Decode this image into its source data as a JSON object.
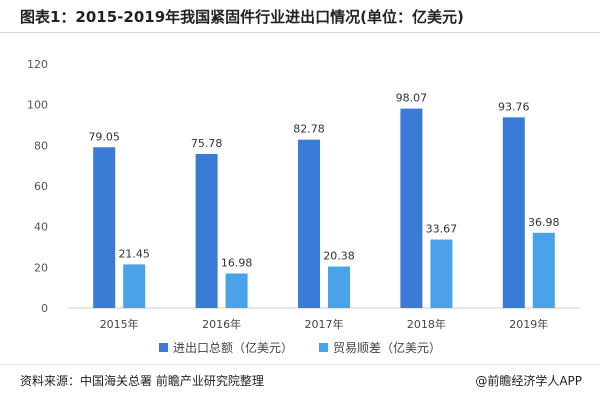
{
  "title": "图表1：2015-2019年我国紧固件行业进出口情况(单位：亿美元)",
  "footer": {
    "source": "资料来源：中国海关总署   前瞻产业研究院整理",
    "brand": "@前瞻经济学人APP"
  },
  "colors": {
    "series1": "#3a7bd5",
    "series2": "#4aa3e8",
    "axis": "#cccccc",
    "grid": "#e6e6e6"
  },
  "chart_data": {
    "type": "bar",
    "categories": [
      "2015年",
      "2016年",
      "2017年",
      "2018年",
      "2019年"
    ],
    "series": [
      {
        "name": "进出口总额（亿美元）",
        "values": [
          79.05,
          75.78,
          82.78,
          98.07,
          93.76
        ]
      },
      {
        "name": "贸易顺差（亿美元）",
        "values": [
          21.45,
          16.98,
          20.38,
          33.67,
          36.98
        ]
      }
    ],
    "ylim": [
      0,
      120
    ],
    "yticks": [
      0,
      20,
      40,
      60,
      80,
      100,
      120
    ],
    "grid": false,
    "legend_position": "bottom"
  }
}
